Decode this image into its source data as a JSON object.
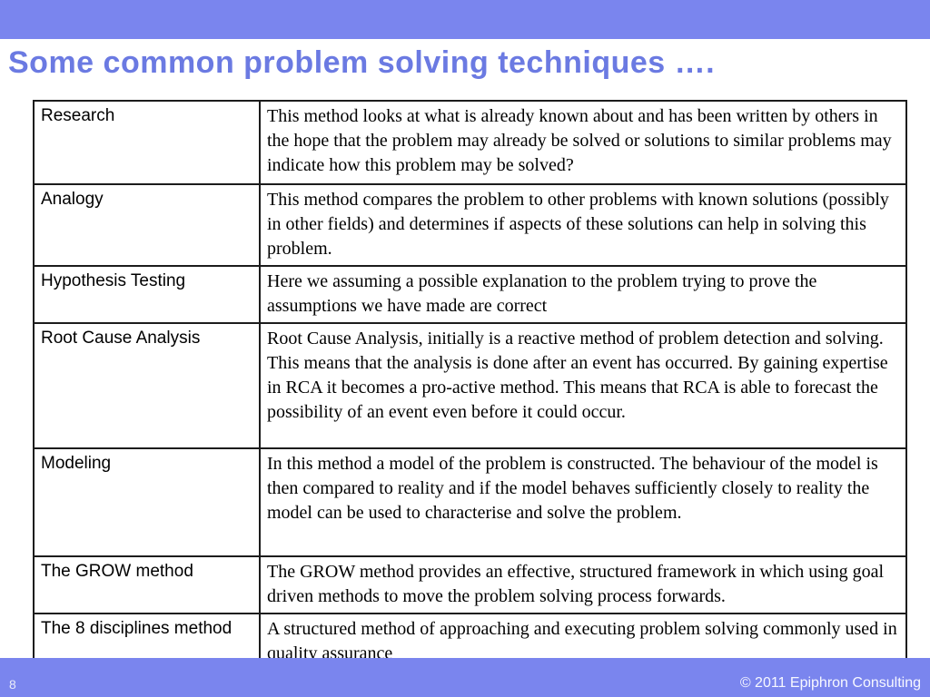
{
  "slide": {
    "title": "Some common problem solving techniques ….",
    "page_number": "8",
    "copyright": "© 2011 Epiphron Consulting",
    "colors": {
      "bar": "#7a85ee",
      "title_text": "#6b7ae2",
      "table_border": "#1c1c1c",
      "body_text": "#000000",
      "footer_text": "#f7f8ff"
    }
  },
  "table": {
    "rows": [
      {
        "method": "Research",
        "description": "This method looks at what is already known about and has been written by others in the hope that the problem may already be solved or solutions to similar problems may indicate how this problem may be solved?"
      },
      {
        "method": "Analogy",
        "description": "This method compares the problem to other problems with known solutions (possibly in other fields) and determines if aspects of these solutions can help in solving this problem."
      },
      {
        "method": "Hypothesis Testing",
        "description": "Here we assuming a possible explanation to the problem trying to prove the assumptions we have made are correct"
      },
      {
        "method": "Root Cause Analysis",
        "description": "Root Cause Analysis, initially is a reactive method of problem detection and solving. This means that the analysis is done after an event has occurred. By gaining expertise in RCA it becomes a pro-active method. This means that RCA is able to forecast the possibility of an event even before it could occur."
      },
      {
        "method": "Modeling",
        "description": "In this method a model of the problem is constructed.  The behaviour of the model is then compared to reality and if the model behaves sufficiently closely to reality the model can be used to characterise and solve the problem."
      },
      {
        "method": "The GROW method",
        "description": "The GROW method provides an effective, structured framework in which using goal driven methods to move the problem solving process forwards."
      },
      {
        "method": "The 8 disciplines method",
        "description": "A structured method of approaching and executing  problem solving commonly used in quality assurance"
      }
    ]
  }
}
